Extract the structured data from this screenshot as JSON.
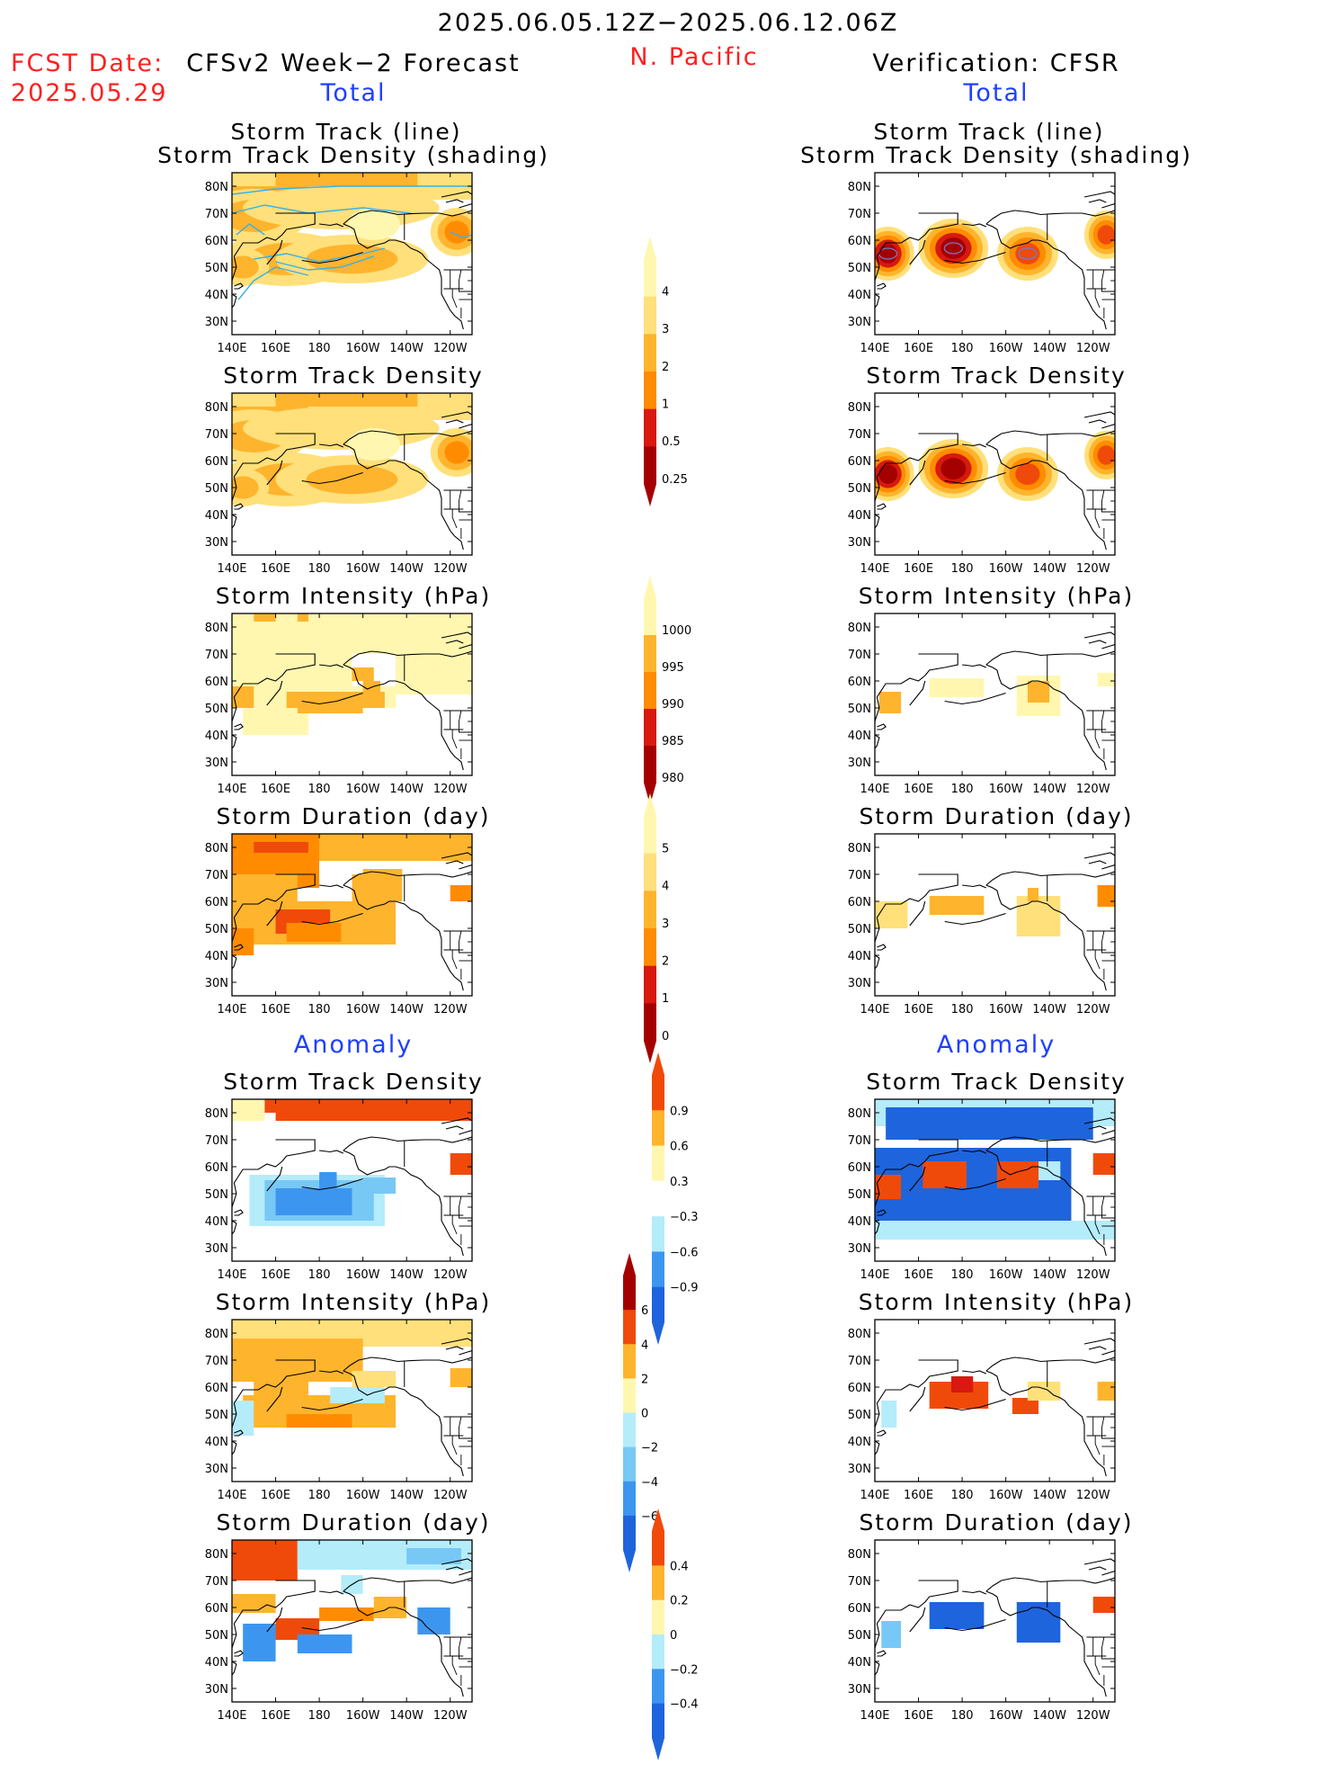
{
  "header": {
    "date_range": "2025.06.05.12Z−2025.06.12.06Z",
    "fcst_label": "FCST Date:",
    "fcst_date": "2025.05.29",
    "region": "N. Pacific",
    "left_title": "CFSv2 Week−2 Forecast",
    "right_title": "Verification: CFSR",
    "total_label": "Total",
    "anomaly_label": "Anomaly"
  },
  "titles": {
    "track_line": "Storm Track (line)",
    "track_shading": "Storm Track Density (shading)",
    "density": "Storm Track Density",
    "intensity": "Storm Intensity (hPa)",
    "duration": "Storm Duration (day)"
  },
  "axes": {
    "lon_labels": [
      "140E",
      "160E",
      "180",
      "160W",
      "140W",
      "120W"
    ],
    "lat_labels": [
      "80N",
      "70N",
      "60N",
      "50N",
      "40N",
      "30N"
    ]
  },
  "colorbars": [
    {
      "id": "density",
      "labels": [
        "4",
        "3",
        "2",
        "1",
        "0.5",
        "0.25"
      ]
    },
    {
      "id": "intensity",
      "labels": [
        "1000",
        "995",
        "990",
        "985",
        "980"
      ]
    },
    {
      "id": "duration",
      "labels": [
        "5",
        "4",
        "3",
        "2",
        "1",
        "0"
      ]
    },
    {
      "id": "density_anom",
      "labels": [
        "0.9",
        "0.6",
        "0.3",
        "−0.3",
        "−0.6",
        "−0.9"
      ]
    },
    {
      "id": "intensity_anom",
      "labels": [
        "6",
        "4",
        "2",
        "0",
        "−2",
        "−4",
        "−6"
      ]
    },
    {
      "id": "duration_anom",
      "labels": [
        "0.4",
        "0.2",
        "0",
        "−0.2",
        "−0.4"
      ]
    }
  ],
  "colors": {
    "warm": [
      "#fff7b0",
      "#ffe07a",
      "#ffb42d",
      "#ff8c00",
      "#f04a0a",
      "#d7190f",
      "#a50000"
    ],
    "cool": [
      "#b4ecfa",
      "#78c8f5",
      "#3c96f0",
      "#1e64dc"
    ],
    "track_line": "#3ab0e8",
    "red_text": "#ff1f1f",
    "blue_text": "#1f3fff"
  }
}
